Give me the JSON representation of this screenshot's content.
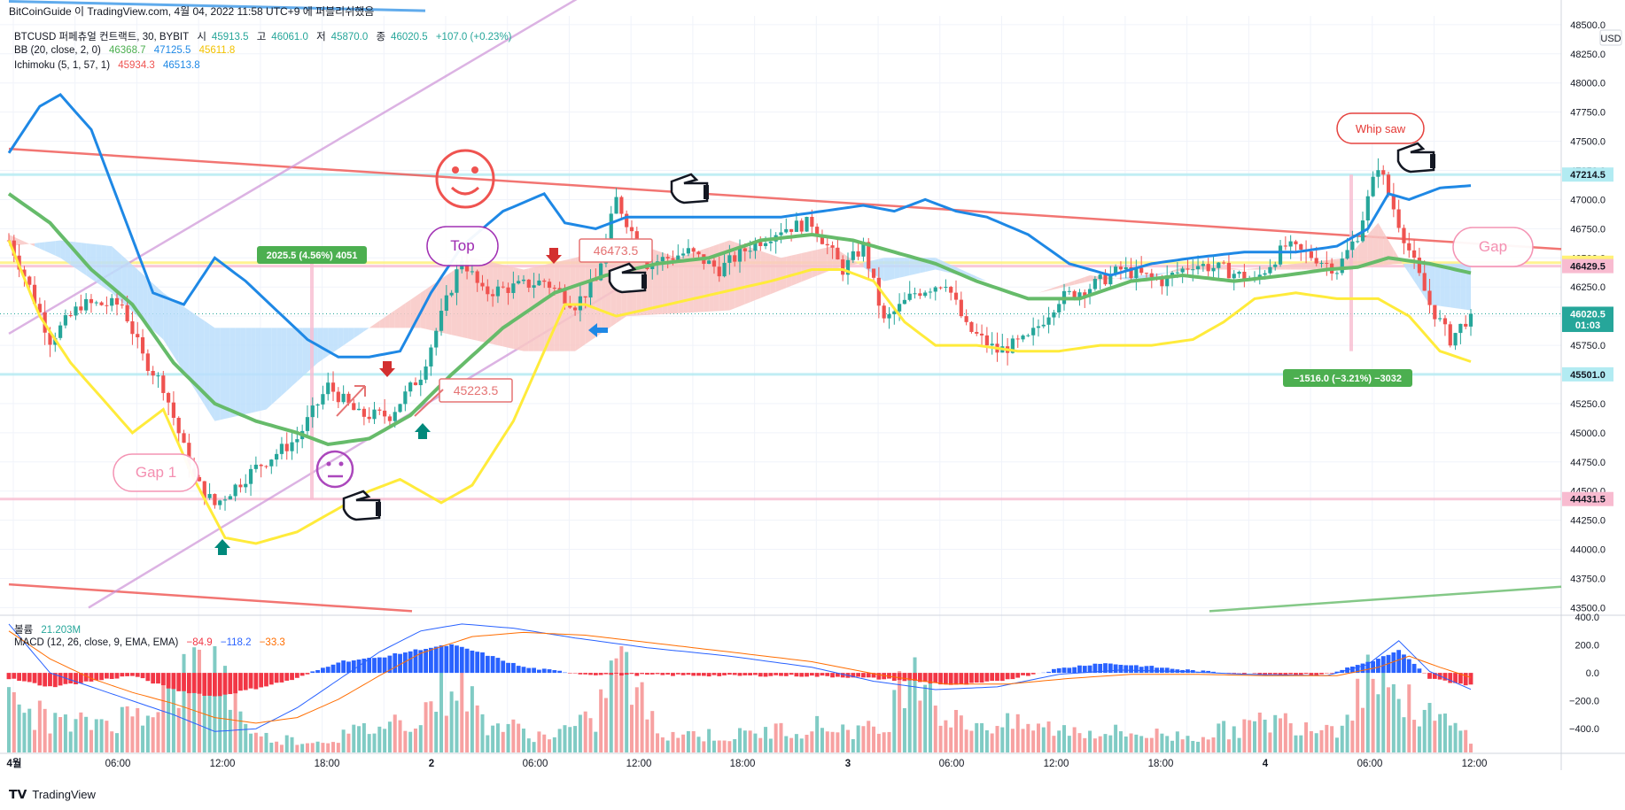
{
  "header": {
    "title": "BitCoinGuide 이 TradingView.com, 4월 04, 2022 11:58 UTC+9 에 퍼블리쉬했음",
    "usd_label": "USD"
  },
  "legend": {
    "symbol": "BTCUSD 퍼페츄얼 컨트랙트, 30, BYBIT",
    "open_label": "시",
    "open": "45913.5",
    "high_label": "고",
    "high": "46061.0",
    "low_label": "저",
    "low": "45870.0",
    "close_label": "종",
    "close": "46020.5",
    "change": "+107.0 (+0.23%)",
    "bb_label": "BB (20, close, 2, 0)",
    "bb_basis": "46368.7",
    "bb_upper": "47125.5",
    "bb_lower": "45611.8",
    "ichimoku_label": "Ichimoku (5, 1, 57, 1)",
    "ichimoku_a": "45934.3",
    "ichimoku_b": "46513.8",
    "volume_label": "볼륨",
    "volume": "21.203M",
    "macd_label": "MACD (12, 26, close, 9, EMA, EMA)",
    "macd_hist": "−84.9",
    "macd_line": "−118.2",
    "macd_signal": "−33.3"
  },
  "colors": {
    "up": "#26a69a",
    "down": "#ef5350",
    "bb_basis": "#66bb6a",
    "bb_upper": "#1e88e5",
    "bb_lower": "#ffeb3b",
    "cloud_bull": "#bbdefb",
    "cloud_bear": "#f8c7c4",
    "macd_pos": "#2962ff",
    "macd_neg": "#f23645",
    "macd_line": "#2962ff",
    "signal_line": "#ff6d00",
    "vol_up": "#80cbc4",
    "vol_down": "#f7a1a1"
  },
  "chart_data": {
    "type": "candlestick",
    "x_tick_labels": [
      "4월",
      "06:00",
      "12:00",
      "18:00",
      "2",
      "06:00",
      "12:00",
      "18:00",
      "3",
      "06:00",
      "12:00",
      "18:00",
      "4",
      "06:00",
      "12:00"
    ],
    "price_axis_labels": [
      "48500.0",
      "48250.0",
      "48000.0",
      "47750.0",
      "47500.0",
      "47250.0",
      "47000.0",
      "46750.0",
      "46500.0",
      "46250.0",
      "46000.0",
      "45750.0",
      "45500.0",
      "45250.0",
      "45000.0",
      "44750.0",
      "44500.0",
      "44250.0",
      "44000.0",
      "43750.0",
      "43500.0"
    ],
    "price_range": [
      43450,
      48575
    ],
    "macd_axis_labels": [
      "400.0",
      "200.0",
      "0.0",
      "−200.0",
      "−400.0"
    ],
    "macd_range": [
      -570,
      400
    ],
    "price_markers": [
      {
        "label": "47214.5",
        "value": 47214.5,
        "color": "#b2ebf2",
        "text_color": "#131722"
      },
      {
        "label": "46458.5",
        "value": 46458.5,
        "color": "#fff176",
        "text_color": "#131722"
      },
      {
        "label": "46429.5",
        "value": 46429.5,
        "color": "#f8bbd0",
        "text_color": "#131722"
      },
      {
        "label": "46020.5",
        "value": 46020.5,
        "color": "#26a69a",
        "text_color": "#ffffff"
      },
      {
        "label": "01:03",
        "value": 45925,
        "color": "#26a69a",
        "text_color": "#ffffff"
      },
      {
        "label": "45501.0",
        "value": 45501.0,
        "color": "#b2ebf2",
        "text_color": "#131722"
      },
      {
        "label": "44431.5",
        "value": 44431.5,
        "color": "#f8bbd0",
        "text_color": "#131722"
      }
    ],
    "annotations": {
      "measure_up": "2025.5 (4.56%) 4051",
      "measure_down": "−1516.0 (−3.21%) −3032",
      "gap1": "Gap 1",
      "gap2": "Gap",
      "top": "Top",
      "whipsaw": "Whip saw",
      "level1": "45223.5",
      "level2": "46473.5"
    },
    "candle_anchors": [
      [
        0,
        46650
      ],
      [
        4,
        46250
      ],
      [
        8,
        45800
      ],
      [
        14,
        46100
      ],
      [
        22,
        46100
      ],
      [
        26,
        45650
      ],
      [
        30,
        45400
      ],
      [
        36,
        44600
      ],
      [
        40,
        44380
      ],
      [
        48,
        44700
      ],
      [
        56,
        44950
      ],
      [
        62,
        45400
      ],
      [
        68,
        45150
      ],
      [
        74,
        45150
      ],
      [
        80,
        45500
      ],
      [
        84,
        46000
      ],
      [
        88,
        46500
      ],
      [
        92,
        46200
      ],
      [
        98,
        46250
      ],
      [
        104,
        46300
      ],
      [
        110,
        46100
      ],
      [
        114,
        46300
      ],
      [
        118,
        47000
      ],
      [
        124,
        46450
      ],
      [
        132,
        46550
      ],
      [
        138,
        46400
      ],
      [
        144,
        46600
      ],
      [
        150,
        46750
      ],
      [
        156,
        46800
      ],
      [
        162,
        46400
      ],
      [
        166,
        46600
      ],
      [
        170,
        45950
      ],
      [
        176,
        46200
      ],
      [
        182,
        46300
      ],
      [
        186,
        45900
      ],
      [
        192,
        45700
      ],
      [
        198,
        45800
      ],
      [
        204,
        46150
      ],
      [
        210,
        46250
      ],
      [
        216,
        46400
      ],
      [
        224,
        46300
      ],
      [
        230,
        46450
      ],
      [
        236,
        46400
      ],
      [
        242,
        46300
      ],
      [
        248,
        46600
      ],
      [
        254,
        46500
      ],
      [
        258,
        46400
      ],
      [
        262,
        46700
      ],
      [
        266,
        47300
      ],
      [
        270,
        46800
      ],
      [
        276,
        46100
      ],
      [
        280,
        45800
      ],
      [
        284,
        46020
      ]
    ],
    "bb_upper_anchors": [
      [
        0,
        47400
      ],
      [
        6,
        47800
      ],
      [
        10,
        47900
      ],
      [
        16,
        47600
      ],
      [
        22,
        46900
      ],
      [
        28,
        46200
      ],
      [
        34,
        46100
      ],
      [
        40,
        46500
      ],
      [
        46,
        46300
      ],
      [
        52,
        46050
      ],
      [
        58,
        45800
      ],
      [
        64,
        45650
      ],
      [
        70,
        45650
      ],
      [
        76,
        45700
      ],
      [
        82,
        46200
      ],
      [
        88,
        46600
      ],
      [
        96,
        46900
      ],
      [
        104,
        47050
      ],
      [
        108,
        46800
      ],
      [
        114,
        46750
      ],
      [
        120,
        46850
      ],
      [
        130,
        46850
      ],
      [
        140,
        46850
      ],
      [
        150,
        46850
      ],
      [
        158,
        46900
      ],
      [
        166,
        46950
      ],
      [
        172,
        46900
      ],
      [
        178,
        47000
      ],
      [
        184,
        46900
      ],
      [
        190,
        46850
      ],
      [
        198,
        46700
      ],
      [
        206,
        46450
      ],
      [
        214,
        46350
      ],
      [
        222,
        46450
      ],
      [
        230,
        46500
      ],
      [
        240,
        46550
      ],
      [
        250,
        46550
      ],
      [
        258,
        46600
      ],
      [
        264,
        46750
      ],
      [
        268,
        47050
      ],
      [
        272,
        47000
      ],
      [
        278,
        47100
      ],
      [
        284,
        47120
      ]
    ],
    "bb_basis_anchors": [
      [
        0,
        47050
      ],
      [
        8,
        46800
      ],
      [
        16,
        46400
      ],
      [
        24,
        46100
      ],
      [
        32,
        45600
      ],
      [
        40,
        45250
      ],
      [
        48,
        45100
      ],
      [
        56,
        45000
      ],
      [
        62,
        44900
      ],
      [
        70,
        44950
      ],
      [
        78,
        45150
      ],
      [
        86,
        45500
      ],
      [
        96,
        45900
      ],
      [
        106,
        46200
      ],
      [
        116,
        46350
      ],
      [
        126,
        46450
      ],
      [
        136,
        46500
      ],
      [
        146,
        46650
      ],
      [
        156,
        46700
      ],
      [
        164,
        46650
      ],
      [
        172,
        46550
      ],
      [
        180,
        46450
      ],
      [
        188,
        46300
      ],
      [
        198,
        46150
      ],
      [
        208,
        46150
      ],
      [
        218,
        46300
      ],
      [
        228,
        46350
      ],
      [
        238,
        46300
      ],
      [
        248,
        46350
      ],
      [
        256,
        46400
      ],
      [
        262,
        46420
      ],
      [
        268,
        46500
      ],
      [
        276,
        46450
      ],
      [
        284,
        46370
      ]
    ],
    "bb_lower_anchors": [
      [
        0,
        46650
      ],
      [
        6,
        46000
      ],
      [
        12,
        45600
      ],
      [
        18,
        45300
      ],
      [
        24,
        45000
      ],
      [
        30,
        45200
      ],
      [
        36,
        44600
      ],
      [
        42,
        44100
      ],
      [
        48,
        44050
      ],
      [
        56,
        44150
      ],
      [
        64,
        44350
      ],
      [
        70,
        44500
      ],
      [
        76,
        44600
      ],
      [
        80,
        44500
      ],
      [
        84,
        44400
      ],
      [
        90,
        44550
      ],
      [
        98,
        45100
      ],
      [
        104,
        45700
      ],
      [
        108,
        46100
      ],
      [
        112,
        46100
      ],
      [
        118,
        46000
      ],
      [
        128,
        46100
      ],
      [
        138,
        46200
      ],
      [
        148,
        46300
      ],
      [
        156,
        46400
      ],
      [
        162,
        46400
      ],
      [
        168,
        46300
      ],
      [
        174,
        45950
      ],
      [
        180,
        45750
      ],
      [
        188,
        45750
      ],
      [
        196,
        45700
      ],
      [
        204,
        45700
      ],
      [
        212,
        45750
      ],
      [
        222,
        45750
      ],
      [
        230,
        45800
      ],
      [
        236,
        45950
      ],
      [
        242,
        46150
      ],
      [
        250,
        46200
      ],
      [
        258,
        46150
      ],
      [
        266,
        46150
      ],
      [
        272,
        46000
      ],
      [
        278,
        45700
      ],
      [
        284,
        45610
      ]
    ],
    "cloud_a_anchors": [
      [
        0,
        46700
      ],
      [
        10,
        46500
      ],
      [
        20,
        46200
      ],
      [
        30,
        45800
      ],
      [
        40,
        45100
      ],
      [
        50,
        45200
      ],
      [
        60,
        45600
      ],
      [
        70,
        45900
      ],
      [
        80,
        46200
      ],
      [
        90,
        46500
      ],
      [
        100,
        46400
      ],
      [
        110,
        46500
      ],
      [
        120,
        46650
      ],
      [
        130,
        46500
      ],
      [
        140,
        46650
      ],
      [
        150,
        46500
      ],
      [
        160,
        46600
      ],
      [
        170,
        46300
      ],
      [
        180,
        46400
      ],
      [
        190,
        46300
      ],
      [
        200,
        46200
      ],
      [
        210,
        46350
      ],
      [
        220,
        46300
      ],
      [
        230,
        46450
      ],
      [
        240,
        46400
      ],
      [
        250,
        46450
      ],
      [
        260,
        46500
      ],
      [
        266,
        46800
      ],
      [
        270,
        46500
      ],
      [
        276,
        46100
      ],
      [
        284,
        46050
      ]
    ],
    "cloud_b_anchors": [
      [
        0,
        46600
      ],
      [
        10,
        46650
      ],
      [
        20,
        46600
      ],
      [
        30,
        46200
      ],
      [
        40,
        45900
      ],
      [
        60,
        45900
      ],
      [
        80,
        45900
      ],
      [
        90,
        45800
      ],
      [
        100,
        45700
      ],
      [
        110,
        45700
      ],
      [
        120,
        46000
      ],
      [
        140,
        46050
      ],
      [
        160,
        46400
      ],
      [
        170,
        46500
      ],
      [
        180,
        46500
      ],
      [
        190,
        46300
      ],
      [
        200,
        46200
      ],
      [
        210,
        46300
      ],
      [
        220,
        46350
      ],
      [
        230,
        46400
      ],
      [
        240,
        46400
      ],
      [
        250,
        46400
      ],
      [
        260,
        46400
      ],
      [
        270,
        46450
      ],
      [
        276,
        46450
      ],
      [
        284,
        46450
      ]
    ],
    "macd_hist_anchors": [
      [
        0,
        -40
      ],
      [
        8,
        -100
      ],
      [
        16,
        -60
      ],
      [
        24,
        -20
      ],
      [
        32,
        -120
      ],
      [
        40,
        -170
      ],
      [
        48,
        -110
      ],
      [
        56,
        -40
      ],
      [
        64,
        80
      ],
      [
        72,
        110
      ],
      [
        80,
        170
      ],
      [
        86,
        200
      ],
      [
        92,
        140
      ],
      [
        100,
        40
      ],
      [
        112,
        -10
      ],
      [
        124,
        -15
      ],
      [
        140,
        -20
      ],
      [
        152,
        -20
      ],
      [
        164,
        -30
      ],
      [
        176,
        -60
      ],
      [
        184,
        -90
      ],
      [
        192,
        -60
      ],
      [
        204,
        30
      ],
      [
        212,
        70
      ],
      [
        220,
        50
      ],
      [
        232,
        10
      ],
      [
        244,
        -10
      ],
      [
        256,
        -10
      ],
      [
        266,
        100
      ],
      [
        270,
        160
      ],
      [
        276,
        -40
      ],
      [
        284,
        -90
      ]
    ],
    "macd_line_anchors": [
      [
        0,
        350
      ],
      [
        8,
        0
      ],
      [
        16,
        -100
      ],
      [
        24,
        -200
      ],
      [
        32,
        -300
      ],
      [
        40,
        -420
      ],
      [
        48,
        -400
      ],
      [
        56,
        -250
      ],
      [
        64,
        -50
      ],
      [
        72,
        150
      ],
      [
        80,
        300
      ],
      [
        88,
        350
      ],
      [
        98,
        320
      ],
      [
        110,
        250
      ],
      [
        124,
        180
      ],
      [
        140,
        120
      ],
      [
        156,
        40
      ],
      [
        168,
        -60
      ],
      [
        180,
        -120
      ],
      [
        192,
        -100
      ],
      [
        204,
        -10
      ],
      [
        216,
        20
      ],
      [
        228,
        10
      ],
      [
        240,
        -10
      ],
      [
        256,
        -20
      ],
      [
        264,
        60
      ],
      [
        270,
        230
      ],
      [
        276,
        10
      ],
      [
        284,
        -118
      ]
    ],
    "signal_line_anchors": [
      [
        0,
        300
      ],
      [
        8,
        100
      ],
      [
        16,
        -40
      ],
      [
        24,
        -140
      ],
      [
        32,
        -220
      ],
      [
        40,
        -320
      ],
      [
        48,
        -360
      ],
      [
        56,
        -320
      ],
      [
        64,
        -190
      ],
      [
        72,
        -20
      ],
      [
        80,
        140
      ],
      [
        90,
        260
      ],
      [
        100,
        290
      ],
      [
        112,
        270
      ],
      [
        126,
        210
      ],
      [
        140,
        150
      ],
      [
        156,
        80
      ],
      [
        170,
        -20
      ],
      [
        182,
        -80
      ],
      [
        194,
        -80
      ],
      [
        206,
        -40
      ],
      [
        218,
        -10
      ],
      [
        230,
        -10
      ],
      [
        244,
        -20
      ],
      [
        258,
        -20
      ],
      [
        266,
        40
      ],
      [
        272,
        120
      ],
      [
        278,
        40
      ],
      [
        284,
        -33
      ]
    ],
    "volume_anchors": [
      [
        0,
        0.45
      ],
      [
        12,
        0.25
      ],
      [
        24,
        0.35
      ],
      [
        36,
        0.75
      ],
      [
        40,
        0.9
      ],
      [
        48,
        0.15
      ],
      [
        60,
        0.1
      ],
      [
        72,
        0.25
      ],
      [
        80,
        0.35
      ],
      [
        84,
        0.6
      ],
      [
        88,
        0.7
      ],
      [
        92,
        0.3
      ],
      [
        104,
        0.15
      ],
      [
        114,
        0.3
      ],
      [
        118,
        0.95
      ],
      [
        126,
        0.2
      ],
      [
        140,
        0.15
      ],
      [
        156,
        0.25
      ],
      [
        170,
        0.2
      ],
      [
        176,
        1.0
      ],
      [
        182,
        0.3
      ],
      [
        196,
        0.25
      ],
      [
        210,
        0.2
      ],
      [
        230,
        0.15
      ],
      [
        246,
        0.3
      ],
      [
        258,
        0.25
      ],
      [
        266,
        0.9
      ],
      [
        270,
        0.5
      ],
      [
        276,
        0.35
      ],
      [
        284,
        0.15
      ]
    ]
  }
}
